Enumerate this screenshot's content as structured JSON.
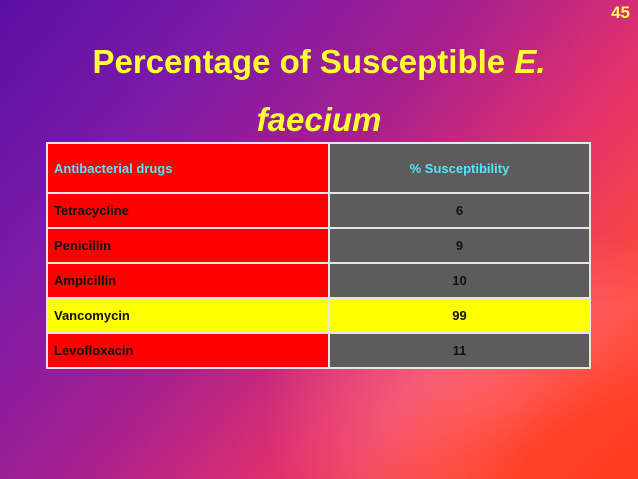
{
  "slide_number": "45",
  "title": {
    "line1_plain": "Percentage of Susceptible ",
    "line1_italic": "E.",
    "line2_italic": "faecium"
  },
  "table": {
    "headers": [
      "Antibacterial drugs",
      "% Susceptibility"
    ],
    "rows": [
      {
        "drug": "Tetracycline",
        "susceptibility": "6"
      },
      {
        "drug": "Penicillin",
        "susceptibility": "9"
      },
      {
        "drug": "Ampicillin",
        "susceptibility": "10"
      },
      {
        "drug": "Vancomycin",
        "susceptibility": "99"
      },
      {
        "drug": "Levofloxacin",
        "susceptibility": "11"
      }
    ]
  },
  "colors": {
    "title": "#ffff33",
    "header_text": "#55e4ff",
    "drug_cell": "#ff0000",
    "value_cell": "#5c5c5c",
    "highlight_row": "#ffff00"
  }
}
